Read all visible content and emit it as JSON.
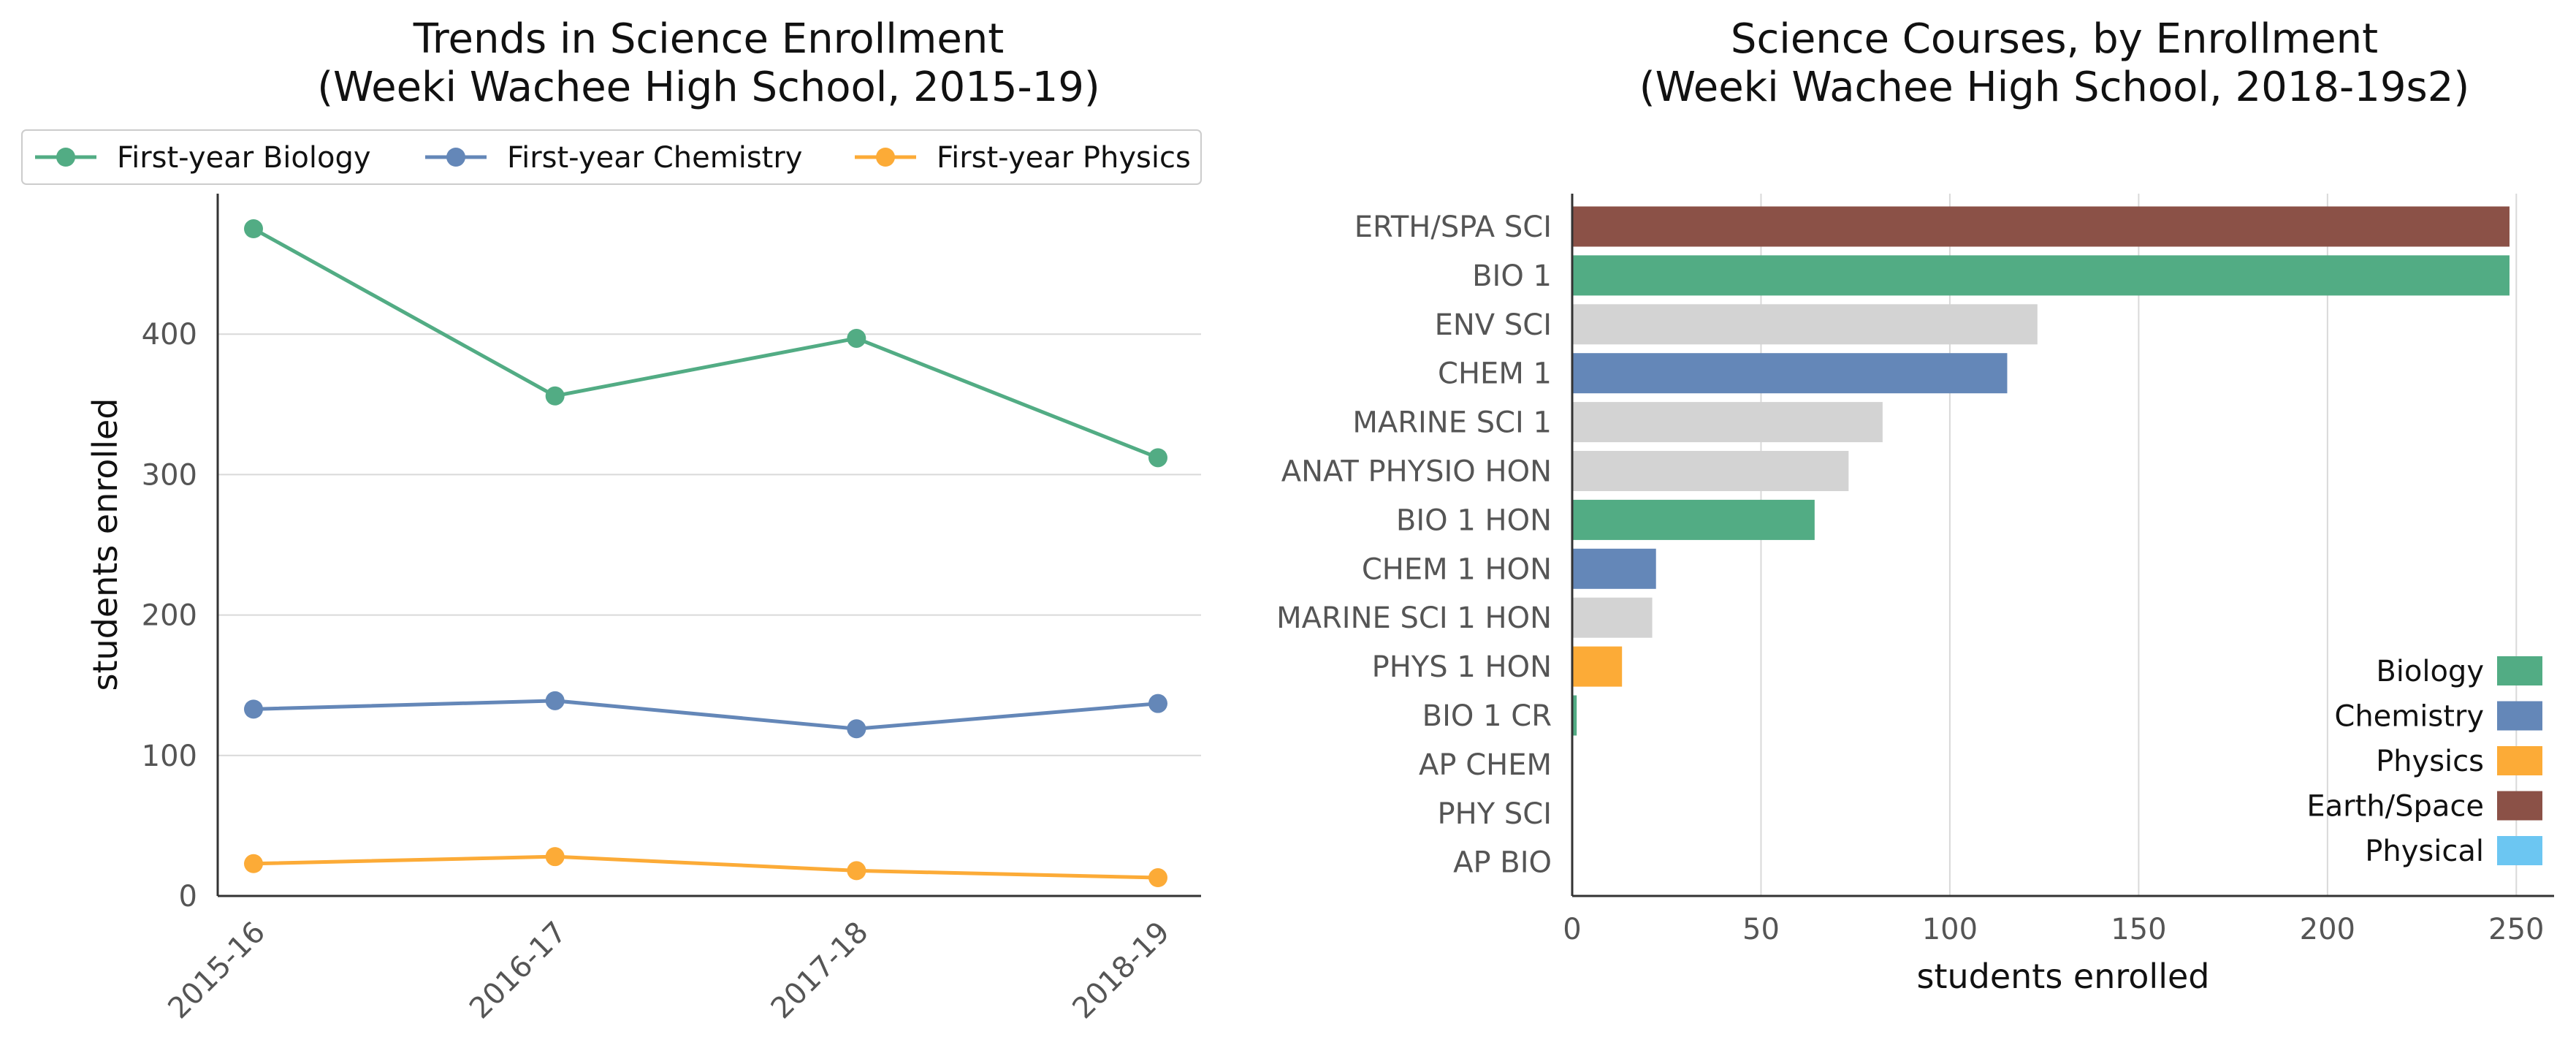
{
  "colors": {
    "biology": "#52AC84",
    "chemistry": "#6487B8",
    "physics": "#FCAB37",
    "earth_space": "#8B5147",
    "physical": "#6CC6F2",
    "other": "#D3D3D3",
    "grid": "#D9D9D9",
    "axis": "#333333"
  },
  "chart_data": [
    {
      "type": "line",
      "title": "Trends in Science Enrollment",
      "subtitle": "(Weeki Wachee High School, 2015-19)",
      "xlabel": "",
      "ylabel": "students enrolled",
      "ylim": [
        0,
        500
      ],
      "yticks": [
        "0",
        "100",
        "200",
        "300",
        "400"
      ],
      "grid": "horizontal",
      "legend": "top",
      "categories": [
        "2015-16",
        "2016-17",
        "2017-18",
        "2018-19"
      ],
      "series": [
        {
          "name": "First-year Biology",
          "color_key": "biology",
          "values": [
            475,
            356,
            397,
            312
          ]
        },
        {
          "name": "First-year Chemistry",
          "color_key": "chemistry",
          "values": [
            133,
            139,
            119,
            137
          ]
        },
        {
          "name": "First-year Physics",
          "color_key": "physics",
          "values": [
            23,
            28,
            18,
            13
          ]
        }
      ]
    },
    {
      "type": "bar",
      "orientation": "horizontal",
      "title": "Science Courses, by Enrollment",
      "subtitle": "(Weeki Wachee High School, 2018-19s2)",
      "xlabel": "students enrolled",
      "ylabel": "",
      "xlim": [
        0,
        260
      ],
      "xticks": [
        "0",
        "50",
        "100",
        "150",
        "200",
        "250"
      ],
      "grid": "vertical",
      "legend": "bottom-right",
      "categories": [
        "ERTH/SPA SCI",
        "BIO 1",
        "ENV SCI",
        "CHEM 1",
        "MARINE SCI 1",
        "ANAT PHYSIO HON",
        "BIO 1 HON",
        "CHEM 1 HON",
        "MARINE SCI 1 HON",
        "PHYS 1 HON",
        "BIO 1 CR",
        "AP CHEM",
        "PHY SCI",
        "AP BIO"
      ],
      "values": [
        248,
        248,
        123,
        115,
        82,
        73,
        64,
        22,
        21,
        13,
        1,
        0,
        0,
        0
      ],
      "bar_color_keys": [
        "earth_space",
        "biology",
        "other",
        "chemistry",
        "other",
        "other",
        "biology",
        "chemistry",
        "other",
        "physics",
        "biology",
        "chemistry",
        "physical",
        "biology"
      ],
      "legend_items": [
        {
          "name": "Biology",
          "color_key": "biology"
        },
        {
          "name": "Chemistry",
          "color_key": "chemistry"
        },
        {
          "name": "Physics",
          "color_key": "physics"
        },
        {
          "name": "Earth/Space",
          "color_key": "earth_space"
        },
        {
          "name": "Physical",
          "color_key": "physical"
        }
      ]
    }
  ]
}
